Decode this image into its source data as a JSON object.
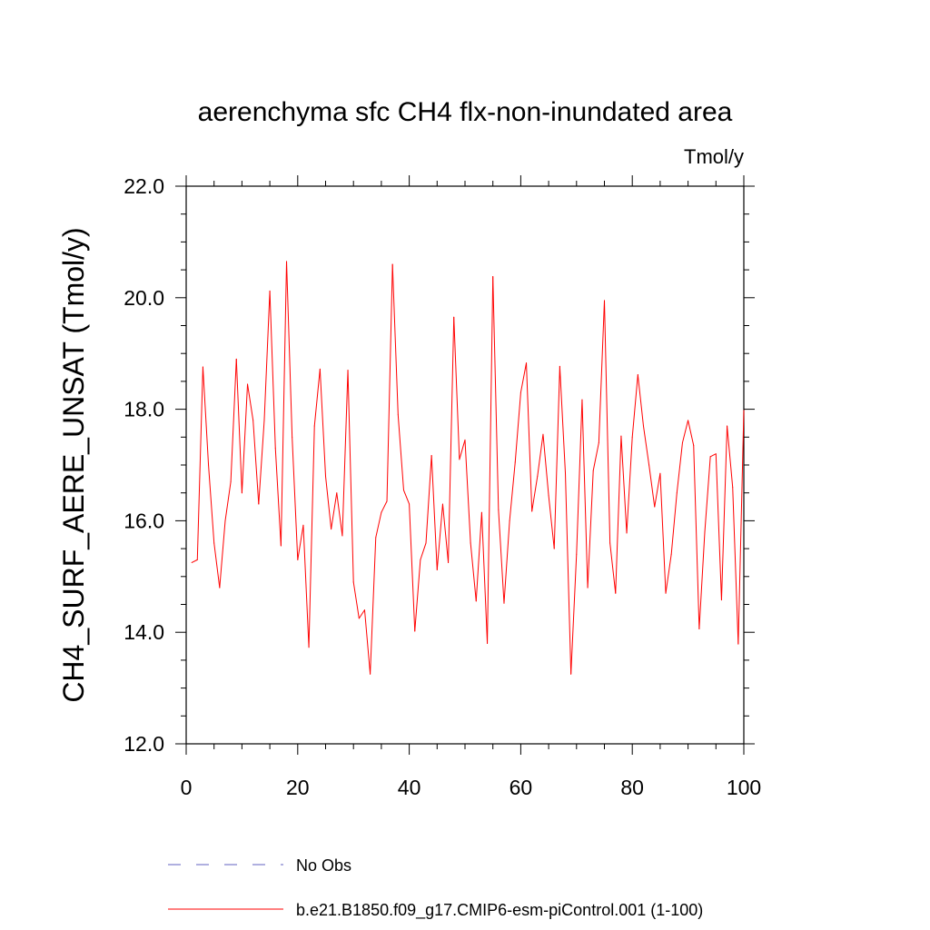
{
  "chart_data": {
    "type": "line",
    "title": "aerenchyma sfc CH4 flx-non-inundated area",
    "units_label": "Tmol/y",
    "ylabel": "CH4_SURF_AERE_UNSAT  (Tmol/y)",
    "xlabel": "",
    "xlim": [
      0,
      100
    ],
    "ylim": [
      12.0,
      22.0
    ],
    "x_ticks": [
      0,
      20,
      40,
      60,
      80,
      100
    ],
    "x_tick_labels": [
      "0",
      "20",
      "40",
      "60",
      "80",
      "100"
    ],
    "y_ticks": [
      12,
      14,
      16,
      18,
      20,
      22
    ],
    "y_tick_labels": [
      "12.0",
      "14.0",
      "16.0",
      "18.0",
      "20.0",
      "22.0"
    ],
    "grid": false,
    "legend_position": "bottom",
    "series": [
      {
        "name": "b.e21.B1850.f09_g17.CMIP6-esm-piControl.001 (1-100)",
        "color": "#ff0000",
        "style": "solid",
        "x": [
          1,
          2,
          3,
          4,
          5,
          6,
          7,
          8,
          9,
          10,
          11,
          12,
          13,
          14,
          15,
          16,
          17,
          18,
          19,
          20,
          21,
          22,
          23,
          24,
          25,
          26,
          27,
          28,
          29,
          30,
          31,
          32,
          33,
          34,
          35,
          36,
          37,
          38,
          39,
          40,
          41,
          42,
          43,
          44,
          45,
          46,
          47,
          48,
          49,
          50,
          51,
          52,
          53,
          54,
          55,
          56,
          57,
          58,
          59,
          60,
          61,
          62,
          63,
          64,
          65,
          66,
          67,
          68,
          69,
          70,
          71,
          72,
          73,
          74,
          75,
          76,
          77,
          78,
          79,
          80,
          81,
          82,
          83,
          84,
          85,
          86,
          87,
          88,
          89,
          90,
          91,
          92,
          93,
          94,
          95,
          96,
          97,
          98,
          99,
          100
        ],
        "values": [
          15.25,
          15.3,
          18.76,
          17.0,
          15.6,
          14.8,
          16.0,
          16.7,
          18.9,
          16.5,
          18.45,
          17.8,
          16.3,
          17.8,
          20.12,
          17.3,
          15.55,
          20.65,
          17.5,
          15.3,
          15.92,
          13.73,
          17.7,
          18.72,
          16.8,
          15.85,
          16.5,
          15.73,
          18.7,
          14.9,
          14.25,
          14.4,
          13.25,
          15.7,
          16.15,
          16.35,
          20.6,
          17.9,
          16.55,
          16.3,
          14.02,
          15.3,
          15.6,
          17.17,
          15.12,
          16.3,
          15.25,
          19.65,
          17.1,
          17.45,
          15.6,
          14.56,
          16.15,
          13.8,
          20.38,
          16.2,
          14.52,
          16.0,
          17.05,
          18.3,
          18.83,
          16.17,
          16.8,
          17.55,
          16.45,
          15.5,
          18.77,
          16.85,
          13.25,
          15.4,
          18.17,
          14.8,
          16.9,
          17.4,
          19.95,
          15.6,
          14.7,
          17.52,
          15.78,
          17.5,
          18.62,
          17.7,
          17.0,
          16.25,
          16.85,
          14.7,
          15.4,
          16.5,
          17.4,
          17.8,
          17.35,
          14.06,
          15.8,
          17.15,
          17.2,
          14.58,
          17.7,
          16.6,
          13.79,
          17.98
        ]
      }
    ],
    "legend_entries": [
      {
        "name": "No Obs",
        "color": "#6060c0",
        "style": "dashed"
      },
      {
        "name": "b.e21.B1850.f09_g17.CMIP6-esm-piControl.001 (1-100)",
        "color": "#ff0000",
        "style": "solid"
      }
    ]
  }
}
